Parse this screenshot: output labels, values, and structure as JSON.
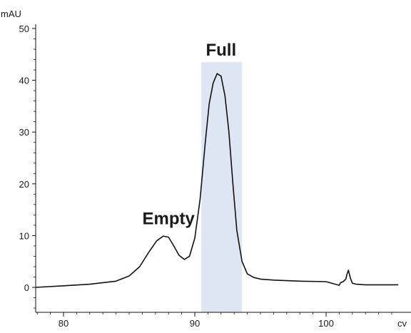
{
  "chart_data": {
    "type": "line",
    "title": "",
    "ylabel": "mAU",
    "xlabel": "cv",
    "xlim": [
      77,
      105.5
    ],
    "ylim": [
      -5,
      50
    ],
    "x_ticks": [
      80,
      90,
      100
    ],
    "x_tick_labels": [
      "80",
      "90",
      "100"
    ],
    "y_ticks": [
      0,
      10,
      20,
      30,
      40,
      50
    ],
    "y_tick_labels": [
      "0",
      "10",
      "20",
      "30",
      "40",
      "50"
    ],
    "grid": false,
    "legend": "none",
    "line_color": "#111111",
    "highlight_color": "#dfe6f3",
    "highlight_region": {
      "label": "Full",
      "x_range": [
        90.5,
        93.6
      ]
    },
    "annotations": [
      {
        "text": "Empty",
        "x": 88.0,
        "y": 12.2
      },
      {
        "text": "Full",
        "x": 92.0,
        "y": 44.8
      }
    ],
    "series": [
      {
        "x": [
          77,
          80,
          82,
          84,
          85,
          85.8,
          86.5,
          87.1,
          87.6,
          88.0,
          88.4,
          88.8,
          89.2,
          89.6,
          90.0,
          90.4,
          90.8,
          91.1,
          91.4,
          91.7,
          92.0,
          92.3,
          92.6,
          92.9,
          93.2,
          93.6,
          94.0,
          94.5,
          95.0,
          96,
          97,
          98,
          100,
          101.0,
          101.1,
          101.3,
          101.5,
          101.6,
          101.7,
          101.85,
          102.0,
          102.3,
          103,
          104,
          105.5
        ],
        "y": [
          0.0,
          0.3,
          0.6,
          1.2,
          2.2,
          4.0,
          6.8,
          9.0,
          9.9,
          9.7,
          8.0,
          6.2,
          5.4,
          6.0,
          9.5,
          17.0,
          28.0,
          35.5,
          39.5,
          41.3,
          40.8,
          37.0,
          30.0,
          20.0,
          11.0,
          5.0,
          2.6,
          1.9,
          1.6,
          1.4,
          1.3,
          1.2,
          1.1,
          0.4,
          0.9,
          1.1,
          1.6,
          2.6,
          3.3,
          1.8,
          0.8,
          0.6,
          0.5,
          0.5,
          0.5
        ]
      }
    ]
  }
}
